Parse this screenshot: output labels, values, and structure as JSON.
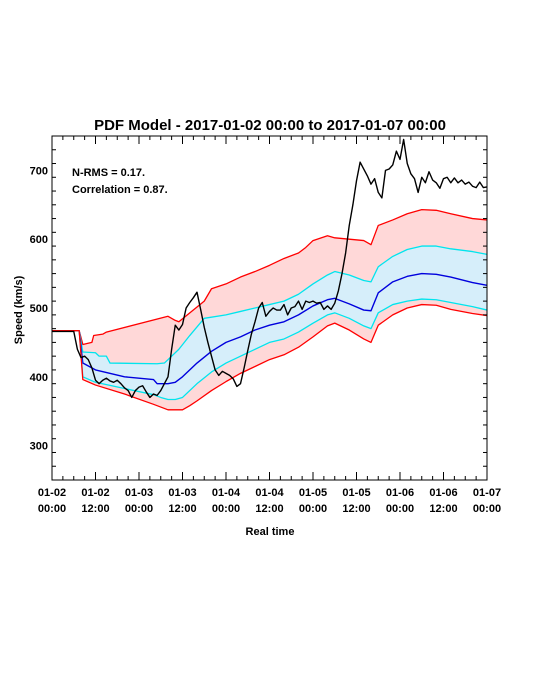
{
  "chart_data": {
    "type": "line",
    "title": "PDF Model - 2017-01-02 00:00 to 2017-01-07 00:00",
    "xlabel": "Real time",
    "ylabel": "Speed (km/s)",
    "xlim": [
      0,
      120
    ],
    "ylim": [
      250,
      750
    ],
    "x_unit": "hours since 2017-01-02 00:00",
    "x_ticks": [
      {
        "x": 0,
        "date": "01-02",
        "time": "00:00"
      },
      {
        "x": 12,
        "date": "01-02",
        "time": "12:00"
      },
      {
        "x": 24,
        "date": "01-03",
        "time": "00:00"
      },
      {
        "x": 36,
        "date": "01-03",
        "time": "12:00"
      },
      {
        "x": 48,
        "date": "01-04",
        "time": "00:00"
      },
      {
        "x": 60,
        "date": "01-04",
        "time": "12:00"
      },
      {
        "x": 72,
        "date": "01-05",
        "time": "00:00"
      },
      {
        "x": 84,
        "date": "01-05",
        "time": "12:00"
      },
      {
        "x": 96,
        "date": "01-06",
        "time": "00:00"
      },
      {
        "x": 108,
        "date": "01-06",
        "time": "12:00"
      },
      {
        "x": 120,
        "date": "01-07",
        "time": "00:00"
      }
    ],
    "y_ticks": [
      300,
      400,
      500,
      600,
      700
    ],
    "annotations": [
      "N-RMS = 0.17.",
      "Correlation = 0.87."
    ],
    "band_colors": {
      "outer_fill": "#ffd8d8",
      "inner_fill": "#d6eefa"
    },
    "series": [
      {
        "color": "#ff0000",
        "points": [
          [
            0,
            467
          ],
          [
            7.5,
            467
          ],
          [
            8.5,
            447
          ],
          [
            11,
            450
          ],
          [
            11.5,
            460
          ],
          [
            14,
            462
          ],
          [
            15,
            465
          ],
          [
            32,
            488
          ],
          [
            34,
            482
          ],
          [
            35,
            480
          ],
          [
            42,
            510
          ],
          [
            44,
            528
          ],
          [
            48,
            535
          ],
          [
            52,
            545
          ],
          [
            56,
            553
          ],
          [
            60,
            562
          ],
          [
            64,
            572
          ],
          [
            68,
            580
          ],
          [
            70,
            588
          ],
          [
            72,
            598
          ],
          [
            76,
            605
          ],
          [
            78,
            602
          ],
          [
            82,
            600
          ],
          [
            86,
            598
          ],
          [
            88,
            592
          ],
          [
            90,
            620
          ],
          [
            94,
            628
          ],
          [
            98,
            637
          ],
          [
            102,
            643
          ],
          [
            106,
            642
          ],
          [
            110,
            637
          ],
          [
            116,
            630
          ],
          [
            120,
            628
          ]
        ]
      },
      {
        "color": "#00e5ee",
        "points": [
          [
            0,
            467
          ],
          [
            7.5,
            467
          ],
          [
            8.5,
            436
          ],
          [
            12,
            435
          ],
          [
            13,
            430
          ],
          [
            15,
            430
          ],
          [
            16,
            420
          ],
          [
            29,
            419
          ],
          [
            31,
            420
          ],
          [
            33,
            430
          ],
          [
            35,
            440
          ],
          [
            38,
            460
          ],
          [
            42,
            485
          ],
          [
            48,
            490
          ],
          [
            52,
            495
          ],
          [
            56,
            500
          ],
          [
            60,
            505
          ],
          [
            64,
            510
          ],
          [
            68,
            520
          ],
          [
            72,
            535
          ],
          [
            76,
            548
          ],
          [
            78,
            553
          ],
          [
            82,
            548
          ],
          [
            86,
            540
          ],
          [
            88,
            538
          ],
          [
            90,
            560
          ],
          [
            94,
            575
          ],
          [
            98,
            585
          ],
          [
            102,
            590
          ],
          [
            106,
            590
          ],
          [
            110,
            586
          ],
          [
            116,
            582
          ],
          [
            120,
            578
          ]
        ]
      },
      {
        "color": "#0000dd",
        "points": [
          [
            0,
            467
          ],
          [
            7.5,
            467
          ],
          [
            8.5,
            420
          ],
          [
            12,
            410
          ],
          [
            20,
            400
          ],
          [
            28,
            396
          ],
          [
            29,
            390
          ],
          [
            32,
            390
          ],
          [
            34,
            392
          ],
          [
            36,
            400
          ],
          [
            38,
            410
          ],
          [
            40,
            420
          ],
          [
            44,
            437
          ],
          [
            48,
            450
          ],
          [
            52,
            458
          ],
          [
            56,
            468
          ],
          [
            60,
            475
          ],
          [
            64,
            480
          ],
          [
            68,
            490
          ],
          [
            72,
            503
          ],
          [
            76,
            512
          ],
          [
            78,
            514
          ],
          [
            82,
            506
          ],
          [
            86,
            497
          ],
          [
            88,
            496
          ],
          [
            90,
            522
          ],
          [
            94,
            538
          ],
          [
            98,
            546
          ],
          [
            102,
            550
          ],
          [
            106,
            549
          ],
          [
            110,
            545
          ],
          [
            116,
            537
          ],
          [
            120,
            533
          ]
        ]
      },
      {
        "color": "#00e5ee",
        "points": [
          [
            0,
            467
          ],
          [
            7.5,
            467
          ],
          [
            8.5,
            400
          ],
          [
            12,
            392
          ],
          [
            20,
            383
          ],
          [
            28,
            374
          ],
          [
            30,
            370
          ],
          [
            32,
            367
          ],
          [
            34,
            367
          ],
          [
            36,
            370
          ],
          [
            38,
            380
          ],
          [
            40,
            390
          ],
          [
            44,
            407
          ],
          [
            48,
            420
          ],
          [
            52,
            430
          ],
          [
            56,
            440
          ],
          [
            60,
            450
          ],
          [
            64,
            455
          ],
          [
            68,
            465
          ],
          [
            72,
            478
          ],
          [
            76,
            490
          ],
          [
            78,
            493
          ],
          [
            82,
            485
          ],
          [
            86,
            474
          ],
          [
            88,
            470
          ],
          [
            90,
            493
          ],
          [
            94,
            505
          ],
          [
            98,
            510
          ],
          [
            102,
            513
          ],
          [
            106,
            512
          ],
          [
            110,
            508
          ],
          [
            116,
            502
          ],
          [
            120,
            497
          ]
        ]
      },
      {
        "color": "#ff0000",
        "points": [
          [
            0,
            467
          ],
          [
            7.5,
            467
          ],
          [
            8.5,
            396
          ],
          [
            12,
            388
          ],
          [
            20,
            375
          ],
          [
            28,
            360
          ],
          [
            30,
            356
          ],
          [
            32,
            352
          ],
          [
            34,
            352
          ],
          [
            36,
            352
          ],
          [
            38,
            358
          ],
          [
            40,
            365
          ],
          [
            44,
            380
          ],
          [
            48,
            393
          ],
          [
            52,
            405
          ],
          [
            56,
            415
          ],
          [
            60,
            425
          ],
          [
            64,
            432
          ],
          [
            68,
            443
          ],
          [
            72,
            458
          ],
          [
            76,
            474
          ],
          [
            78,
            478
          ],
          [
            82,
            468
          ],
          [
            86,
            455
          ],
          [
            88,
            450
          ],
          [
            90,
            475
          ],
          [
            94,
            490
          ],
          [
            98,
            500
          ],
          [
            102,
            505
          ],
          [
            106,
            504
          ],
          [
            110,
            498
          ],
          [
            116,
            492
          ],
          [
            120,
            489
          ]
        ]
      },
      {
        "color": "#000000",
        "points": [
          [
            0,
            466
          ],
          [
            6,
            466
          ],
          [
            7,
            440
          ],
          [
            8,
            428
          ],
          [
            9,
            430
          ],
          [
            10,
            425
          ],
          [
            11,
            413
          ],
          [
            12,
            395
          ],
          [
            13,
            390
          ],
          [
            14,
            395
          ],
          [
            15,
            398
          ],
          [
            16,
            394
          ],
          [
            17,
            392
          ],
          [
            18,
            395
          ],
          [
            19,
            390
          ],
          [
            20,
            384
          ],
          [
            21,
            380
          ],
          [
            22,
            370
          ],
          [
            23,
            380
          ],
          [
            24,
            385
          ],
          [
            25,
            387
          ],
          [
            26,
            378
          ],
          [
            27,
            370
          ],
          [
            28,
            375
          ],
          [
            29,
            373
          ],
          [
            30,
            380
          ],
          [
            31,
            390
          ],
          [
            32,
            400
          ],
          [
            33,
            440
          ],
          [
            34,
            475
          ],
          [
            35,
            468
          ],
          [
            36,
            476
          ],
          [
            37,
            500
          ],
          [
            38,
            508
          ],
          [
            39,
            515
          ],
          [
            40,
            523
          ],
          [
            41,
            498
          ],
          [
            42,
            472
          ],
          [
            43,
            450
          ],
          [
            44,
            430
          ],
          [
            45,
            410
          ],
          [
            46,
            402
          ],
          [
            47,
            408
          ],
          [
            48,
            405
          ],
          [
            49,
            402
          ],
          [
            50,
            397
          ],
          [
            51,
            386
          ],
          [
            52,
            390
          ],
          [
            53,
            413
          ],
          [
            54,
            438
          ],
          [
            55,
            462
          ],
          [
            56,
            480
          ],
          [
            57,
            500
          ],
          [
            58,
            508
          ],
          [
            59,
            488
          ],
          [
            60,
            495
          ],
          [
            61,
            500
          ],
          [
            62,
            497
          ],
          [
            63,
            497
          ],
          [
            64,
            505
          ],
          [
            65,
            490
          ],
          [
            66,
            500
          ],
          [
            67,
            502
          ],
          [
            68,
            510
          ],
          [
            69,
            498
          ],
          [
            70,
            510
          ],
          [
            71,
            508
          ],
          [
            72,
            510
          ],
          [
            73,
            507
          ],
          [
            74,
            508
          ],
          [
            75,
            498
          ],
          [
            76,
            503
          ],
          [
            77,
            498
          ],
          [
            78,
            507
          ],
          [
            79,
            525
          ],
          [
            80,
            550
          ],
          [
            81,
            580
          ],
          [
            82,
            620
          ],
          [
            83,
            650
          ],
          [
            84,
            685
          ],
          [
            85,
            712
          ],
          [
            86,
            702
          ],
          [
            87,
            692
          ],
          [
            88,
            680
          ],
          [
            89,
            688
          ],
          [
            90,
            668
          ],
          [
            91,
            660
          ],
          [
            92,
            700
          ],
          [
            93,
            702
          ],
          [
            94,
            708
          ],
          [
            95,
            728
          ],
          [
            96,
            716
          ],
          [
            97,
            745
          ],
          [
            98,
            710
          ],
          [
            99,
            695
          ],
          [
            100,
            688
          ],
          [
            101,
            668
          ],
          [
            102,
            690
          ],
          [
            103,
            682
          ],
          [
            104,
            698
          ],
          [
            105,
            686
          ],
          [
            106,
            682
          ],
          [
            107,
            674
          ],
          [
            108,
            688
          ],
          [
            109,
            690
          ],
          [
            110,
            682
          ],
          [
            111,
            689
          ],
          [
            112,
            682
          ],
          [
            113,
            686
          ],
          [
            114,
            680
          ],
          [
            115,
            683
          ],
          [
            116,
            677
          ],
          [
            117,
            675
          ],
          [
            118,
            683
          ],
          [
            119,
            675
          ],
          [
            120,
            676
          ]
        ]
      }
    ]
  }
}
